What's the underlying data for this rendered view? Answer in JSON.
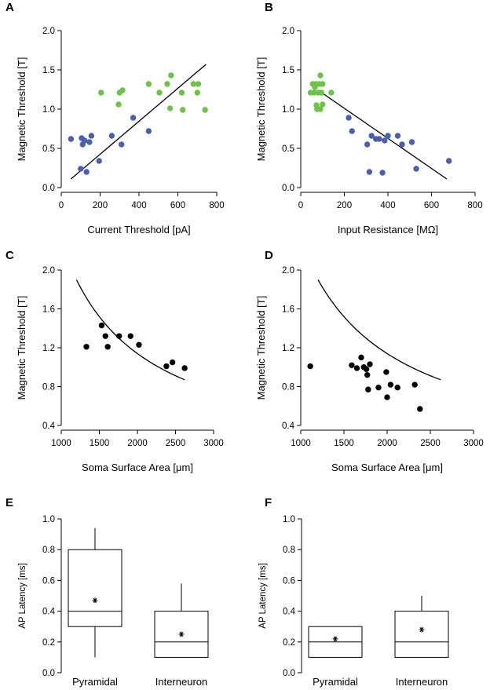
{
  "colors": {
    "pyramidal": "#4a5fae",
    "interneuron": "#6cc24a",
    "black": "#000000"
  },
  "chart_data": [
    {
      "panel": "A",
      "type": "scatter",
      "xlabel": "Current Threshold [pA]",
      "ylabel": "Magnetic Threshold [T]",
      "xlim": [
        0,
        800
      ],
      "ylim": [
        0,
        2
      ],
      "xticks": [
        "0",
        "200",
        "400",
        "600",
        "800"
      ],
      "yticks": [
        "0.0",
        "0.5",
        "1.0",
        "1.5",
        "2.0"
      ],
      "series": [
        {
          "name": "blue",
          "color": "#4a5fae",
          "points": [
            [
              50,
              0.62
            ],
            [
              100,
              0.24
            ],
            [
              105,
              0.63
            ],
            [
              110,
              0.55
            ],
            [
              120,
              0.6
            ],
            [
              130,
              0.2
            ],
            [
              145,
              0.58
            ],
            [
              155,
              0.66
            ],
            [
              195,
              0.34
            ],
            [
              260,
              0.66
            ],
            [
              310,
              0.55
            ],
            [
              370,
              0.89
            ],
            [
              450,
              0.72
            ]
          ]
        },
        {
          "name": "green",
          "color": "#6cc24a",
          "points": [
            [
              205,
              1.21
            ],
            [
              295,
              1.06
            ],
            [
              300,
              1.21
            ],
            [
              315,
              1.24
            ],
            [
              450,
              1.32
            ],
            [
              505,
              1.21
            ],
            [
              545,
              1.32
            ],
            [
              560,
              1.01
            ],
            [
              565,
              1.43
            ],
            [
              620,
              1.21
            ],
            [
              625,
              0.99
            ],
            [
              680,
              1.32
            ],
            [
              700,
              1.21
            ],
            [
              705,
              1.32
            ],
            [
              740,
              0.99
            ]
          ]
        }
      ],
      "fit": [
        [
          50,
          0.11
        ],
        [
          745,
          1.57
        ]
      ]
    },
    {
      "panel": "B",
      "type": "scatter",
      "xlabel": "Input Resistance [MΩ]",
      "ylabel": "Magnetic Threshold [T]",
      "xlim": [
        0,
        800
      ],
      "ylim": [
        0,
        2
      ],
      "xticks": [
        "0",
        "200",
        "400",
        "600",
        "800"
      ],
      "yticks": [
        "0.0",
        "0.5",
        "1.0",
        "1.5",
        "2.0"
      ],
      "series": [
        {
          "name": "blue",
          "color": "#4a5fae",
          "points": [
            [
              220,
              0.89
            ],
            [
              235,
              0.72
            ],
            [
              305,
              0.55
            ],
            [
              315,
              0.2
            ],
            [
              325,
              0.66
            ],
            [
              345,
              0.62
            ],
            [
              360,
              0.62
            ],
            [
              375,
              0.19
            ],
            [
              385,
              0.6
            ],
            [
              400,
              0.66
            ],
            [
              445,
              0.66
            ],
            [
              465,
              0.55
            ],
            [
              510,
              0.58
            ],
            [
              530,
              0.24
            ],
            [
              680,
              0.34
            ]
          ]
        },
        {
          "name": "green",
          "color": "#6cc24a",
          "points": [
            [
              45,
              1.21
            ],
            [
              55,
              1.32
            ],
            [
              60,
              1.21
            ],
            [
              65,
              1.28
            ],
            [
              70,
              1.32
            ],
            [
              72,
              1.05
            ],
            [
              75,
              1.0
            ],
            [
              80,
              1.21
            ],
            [
              85,
              1.32
            ],
            [
              90,
              1.43
            ],
            [
              90,
              1.0
            ],
            [
              95,
              1.21
            ],
            [
              100,
              1.32
            ],
            [
              100,
              1.06
            ],
            [
              140,
              1.21
            ]
          ]
        }
      ],
      "fit": [
        [
          80,
          1.24
        ],
        [
          670,
          0.11
        ]
      ]
    },
    {
      "panel": "C",
      "type": "scatter",
      "xlabel": "Soma Surface Area [μm]",
      "ylabel": "Magnetic Threshold [T]",
      "xlim": [
        1000,
        3000
      ],
      "ylim": [
        0.4,
        2.0
      ],
      "xticks": [
        "1000",
        "1500",
        "2000",
        "2500",
        "3000"
      ],
      "yticks": [
        "0.4",
        "0.8",
        "1.2",
        "1.6",
        "2.0"
      ],
      "series": [
        {
          "name": "neurons",
          "color": "#000000",
          "points": [
            [
              1330,
              1.21
            ],
            [
              1530,
              1.43
            ],
            [
              1580,
              1.32
            ],
            [
              1610,
              1.21
            ],
            [
              1760,
              1.32
            ],
            [
              1910,
              1.32
            ],
            [
              2020,
              1.23
            ],
            [
              2380,
              1.01
            ],
            [
              2460,
              1.05
            ],
            [
              2620,
              0.99
            ]
          ]
        }
      ],
      "curve": {
        "k": 2280,
        "x0": 1200,
        "x1": 2620
      }
    },
    {
      "panel": "D",
      "type": "scatter",
      "xlabel": "Soma Surface Area [μm]",
      "ylabel": "Magnetic Threshold [T]",
      "xlim": [
        1000,
        3000
      ],
      "ylim": [
        0.4,
        2.0
      ],
      "xticks": [
        "1000",
        "1500",
        "2000",
        "2500",
        "3000"
      ],
      "yticks": [
        "0.4",
        "0.8",
        "1.2",
        "1.6",
        "2.0"
      ],
      "series": [
        {
          "name": "neurons",
          "color": "#000000",
          "points": [
            [
              1110,
              1.01
            ],
            [
              1590,
              1.02
            ],
            [
              1650,
              0.99
            ],
            [
              1700,
              1.1
            ],
            [
              1730,
              1.0
            ],
            [
              1760,
              0.98
            ],
            [
              1770,
              0.92
            ],
            [
              1780,
              0.77
            ],
            [
              1800,
              1.03
            ],
            [
              1900,
              0.79
            ],
            [
              1990,
              0.95
            ],
            [
              2000,
              0.69
            ],
            [
              2040,
              0.82
            ],
            [
              2120,
              0.79
            ],
            [
              2320,
              0.82
            ],
            [
              2380,
              0.57
            ]
          ]
        }
      ],
      "curve": {
        "k": 2280,
        "x0": 1200,
        "x1": 2620
      }
    },
    {
      "panel": "E",
      "type": "box",
      "ylabel": "AP Latency [ms]",
      "ylim": [
        0,
        1.0
      ],
      "yticks": [
        "0.0",
        "0.2",
        "0.4",
        "0.6",
        "0.8",
        "1.0"
      ],
      "categories": [
        "Pyramidal",
        "Interneuron"
      ],
      "boxes": [
        {
          "min": 0.1,
          "q1": 0.3,
          "median": 0.4,
          "q3": 0.8,
          "max": 0.94,
          "mean": 0.47
        },
        {
          "min": 0.1,
          "q1": 0.1,
          "median": 0.2,
          "q3": 0.4,
          "max": 0.58,
          "mean": 0.25
        }
      ]
    },
    {
      "panel": "F",
      "type": "box",
      "ylabel": "AP Latency [ms]",
      "ylim": [
        0,
        1.0
      ],
      "yticks": [
        "0.0",
        "0.2",
        "0.4",
        "0.6",
        "0.8",
        "1.0"
      ],
      "categories": [
        "Pyramidal",
        "Interneuron"
      ],
      "boxes": [
        {
          "min": 0.1,
          "q1": 0.1,
          "median": 0.2,
          "q3": 0.3,
          "max": 0.3,
          "mean": 0.22
        },
        {
          "min": 0.1,
          "q1": 0.1,
          "median": 0.2,
          "q3": 0.4,
          "max": 0.5,
          "mean": 0.28
        }
      ]
    }
  ]
}
